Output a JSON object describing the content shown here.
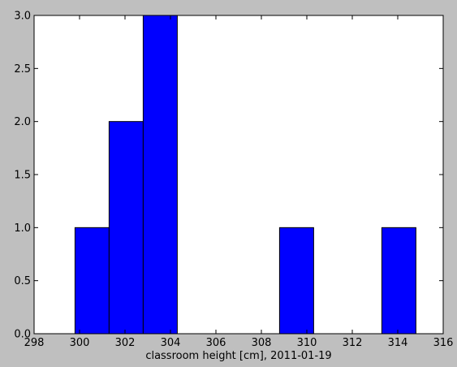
{
  "chart_data": {
    "type": "bar",
    "subtype": "histogram",
    "xlabel": "classroom height [cm], 2011-01-19",
    "ylabel": "",
    "title": "",
    "xlim": [
      298,
      316
    ],
    "ylim": [
      0,
      3.0
    ],
    "xticks": [
      298,
      300,
      302,
      304,
      306,
      308,
      310,
      312,
      314,
      316
    ],
    "xtick_labels": [
      "298",
      "300",
      "302",
      "304",
      "306",
      "308",
      "310",
      "312",
      "314",
      "316"
    ],
    "yticks": [
      0,
      0.5,
      1.0,
      1.5,
      2.0,
      2.5,
      3.0
    ],
    "ytick_labels": [
      "0.0",
      "0.5",
      "1.0",
      "1.5",
      "2.0",
      "2.5",
      "3.0"
    ],
    "bins": [
      {
        "x0": 299.8,
        "x1": 301.3,
        "count": 1
      },
      {
        "x0": 301.3,
        "x1": 302.8,
        "count": 2
      },
      {
        "x0": 302.8,
        "x1": 304.3,
        "count": 3
      },
      {
        "x0": 304.3,
        "x1": 305.8,
        "count": 0
      },
      {
        "x0": 305.8,
        "x1": 307.3,
        "count": 0
      },
      {
        "x0": 307.3,
        "x1": 308.8,
        "count": 0
      },
      {
        "x0": 308.8,
        "x1": 310.3,
        "count": 1
      },
      {
        "x0": 310.3,
        "x1": 311.8,
        "count": 0
      },
      {
        "x0": 311.8,
        "x1": 313.3,
        "count": 0
      },
      {
        "x0": 313.3,
        "x1": 314.8,
        "count": 1
      }
    ],
    "bar_color": "#0000ff",
    "edge_color": "#000000",
    "plot_background": "#ffffff",
    "figure_background": "#bfbfbf",
    "grid": false,
    "legend": "none"
  }
}
